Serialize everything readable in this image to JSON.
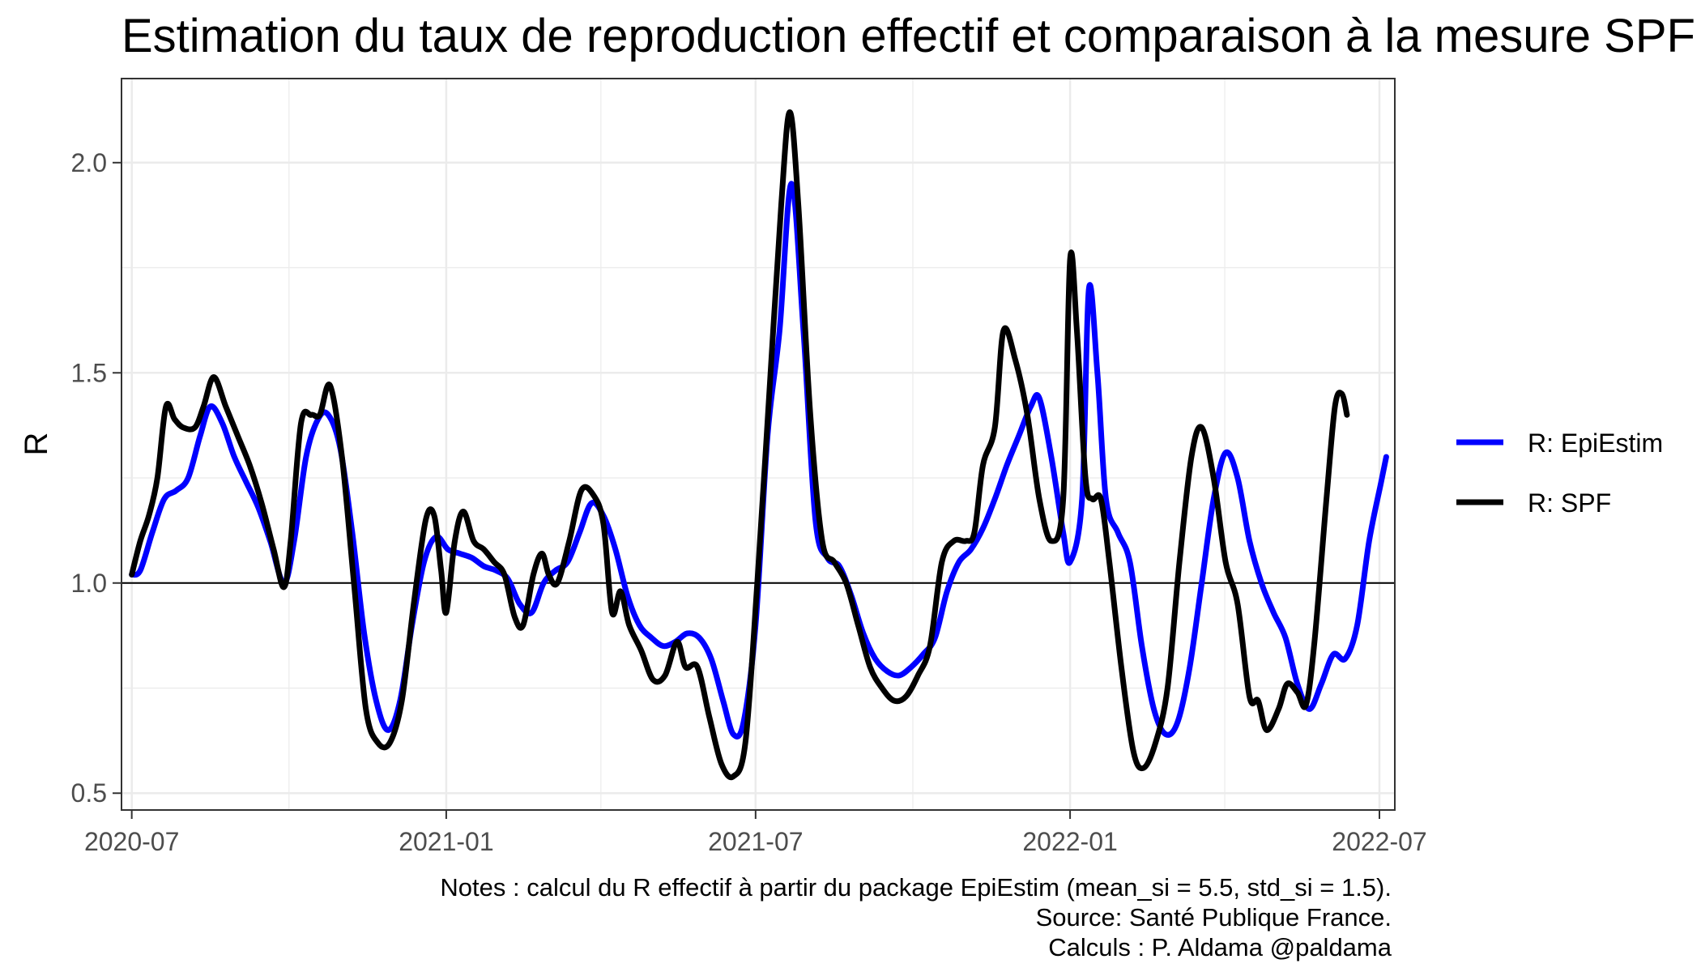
{
  "chart_data": {
    "type": "line",
    "title": "Estimation du taux de reproduction effectif et comparaison à la mesure SPF",
    "xlabel": "",
    "ylabel": "R",
    "xlim": [
      "2020-06-25",
      "2022-07-10"
    ],
    "ylim": [
      0.46,
      2.2
    ],
    "x_ticks": [
      "2020-07",
      "2021-01",
      "2021-07",
      "2022-01",
      "2022-07"
    ],
    "x_tick_dates": [
      "2020-07-01",
      "2021-01-01",
      "2021-07-01",
      "2022-01-01",
      "2022-07-01"
    ],
    "y_ticks": [
      "0.5",
      "1.0",
      "1.5",
      "2.0"
    ],
    "y_tick_values": [
      0.5,
      1.0,
      1.5,
      2.0
    ],
    "reference_line": 1.0,
    "grid": true,
    "legend_position": "right",
    "series": [
      {
        "name": "R: EpiEstim",
        "color": "#0000ff",
        "points": [
          [
            "2020-07-01",
            1.02
          ],
          [
            "2020-07-06",
            1.03
          ],
          [
            "2020-07-13",
            1.12
          ],
          [
            "2020-07-20",
            1.2
          ],
          [
            "2020-07-27",
            1.22
          ],
          [
            "2020-08-03",
            1.25
          ],
          [
            "2020-08-10",
            1.35
          ],
          [
            "2020-08-16",
            1.42
          ],
          [
            "2020-08-23",
            1.38
          ],
          [
            "2020-08-30",
            1.3
          ],
          [
            "2020-09-06",
            1.24
          ],
          [
            "2020-09-13",
            1.18
          ],
          [
            "2020-09-20",
            1.1
          ],
          [
            "2020-09-28",
            1.0
          ],
          [
            "2020-10-04",
            1.1
          ],
          [
            "2020-10-11",
            1.3
          ],
          [
            "2020-10-18",
            1.39
          ],
          [
            "2020-10-24",
            1.4
          ],
          [
            "2020-10-31",
            1.32
          ],
          [
            "2020-11-07",
            1.12
          ],
          [
            "2020-11-14",
            0.88
          ],
          [
            "2020-11-21",
            0.72
          ],
          [
            "2020-11-28",
            0.65
          ],
          [
            "2020-12-05",
            0.72
          ],
          [
            "2020-12-12",
            0.9
          ],
          [
            "2020-12-19",
            1.05
          ],
          [
            "2020-12-26",
            1.11
          ],
          [
            "2021-01-02",
            1.08
          ],
          [
            "2021-01-09",
            1.07
          ],
          [
            "2021-01-16",
            1.06
          ],
          [
            "2021-01-23",
            1.04
          ],
          [
            "2021-01-30",
            1.03
          ],
          [
            "2021-02-06",
            1.01
          ],
          [
            "2021-02-13",
            0.95
          ],
          [
            "2021-02-20",
            0.93
          ],
          [
            "2021-02-27",
            1.0
          ],
          [
            "2021-03-06",
            1.03
          ],
          [
            "2021-03-13",
            1.05
          ],
          [
            "2021-03-20",
            1.12
          ],
          [
            "2021-03-27",
            1.19
          ],
          [
            "2021-04-03",
            1.16
          ],
          [
            "2021-04-10",
            1.08
          ],
          [
            "2021-04-17",
            0.97
          ],
          [
            "2021-04-24",
            0.9
          ],
          [
            "2021-05-01",
            0.87
          ],
          [
            "2021-05-08",
            0.85
          ],
          [
            "2021-05-15",
            0.86
          ],
          [
            "2021-05-22",
            0.88
          ],
          [
            "2021-05-29",
            0.87
          ],
          [
            "2021-06-05",
            0.82
          ],
          [
            "2021-06-12",
            0.72
          ],
          [
            "2021-06-18",
            0.64
          ],
          [
            "2021-06-24",
            0.67
          ],
          [
            "2021-07-01",
            0.9
          ],
          [
            "2021-07-08",
            1.35
          ],
          [
            "2021-07-15",
            1.6
          ],
          [
            "2021-07-22",
            1.95
          ],
          [
            "2021-07-29",
            1.6
          ],
          [
            "2021-08-05",
            1.15
          ],
          [
            "2021-08-12",
            1.06
          ],
          [
            "2021-08-19",
            1.04
          ],
          [
            "2021-08-26",
            0.97
          ],
          [
            "2021-09-02",
            0.88
          ],
          [
            "2021-09-09",
            0.82
          ],
          [
            "2021-09-16",
            0.79
          ],
          [
            "2021-09-23",
            0.78
          ],
          [
            "2021-09-30",
            0.8
          ],
          [
            "2021-10-07",
            0.83
          ],
          [
            "2021-10-14",
            0.87
          ],
          [
            "2021-10-21",
            0.98
          ],
          [
            "2021-10-28",
            1.05
          ],
          [
            "2021-11-04",
            1.08
          ],
          [
            "2021-11-11",
            1.13
          ],
          [
            "2021-11-18",
            1.2
          ],
          [
            "2021-11-25",
            1.28
          ],
          [
            "2021-12-02",
            1.35
          ],
          [
            "2021-12-09",
            1.42
          ],
          [
            "2021-12-14",
            1.44
          ],
          [
            "2021-12-21",
            1.3
          ],
          [
            "2021-12-28",
            1.12
          ],
          [
            "2022-01-01",
            1.05
          ],
          [
            "2022-01-08",
            1.2
          ],
          [
            "2022-01-12",
            1.7
          ],
          [
            "2022-01-17",
            1.5
          ],
          [
            "2022-01-22",
            1.2
          ],
          [
            "2022-01-29",
            1.12
          ],
          [
            "2022-02-05",
            1.05
          ],
          [
            "2022-02-12",
            0.85
          ],
          [
            "2022-02-19",
            0.7
          ],
          [
            "2022-02-26",
            0.64
          ],
          [
            "2022-03-05",
            0.67
          ],
          [
            "2022-03-12",
            0.8
          ],
          [
            "2022-03-19",
            1.0
          ],
          [
            "2022-03-26",
            1.2
          ],
          [
            "2022-04-02",
            1.31
          ],
          [
            "2022-04-09",
            1.25
          ],
          [
            "2022-04-16",
            1.1
          ],
          [
            "2022-04-23",
            1.0
          ],
          [
            "2022-04-30",
            0.93
          ],
          [
            "2022-05-07",
            0.87
          ],
          [
            "2022-05-14",
            0.76
          ],
          [
            "2022-05-21",
            0.7
          ],
          [
            "2022-05-28",
            0.76
          ],
          [
            "2022-06-04",
            0.83
          ],
          [
            "2022-06-11",
            0.82
          ],
          [
            "2022-06-18",
            0.9
          ],
          [
            "2022-06-25",
            1.1
          ],
          [
            "2022-07-02",
            1.24
          ],
          [
            "2022-07-05",
            1.3
          ]
        ]
      },
      {
        "name": "R: SPF",
        "color": "#000000",
        "points": [
          [
            "2020-07-01",
            1.02
          ],
          [
            "2020-07-06",
            1.1
          ],
          [
            "2020-07-11",
            1.16
          ],
          [
            "2020-07-16",
            1.25
          ],
          [
            "2020-07-21",
            1.42
          ],
          [
            "2020-07-26",
            1.39
          ],
          [
            "2020-07-31",
            1.37
          ],
          [
            "2020-08-07",
            1.37
          ],
          [
            "2020-08-12",
            1.42
          ],
          [
            "2020-08-18",
            1.49
          ],
          [
            "2020-08-25",
            1.42
          ],
          [
            "2020-09-01",
            1.35
          ],
          [
            "2020-09-08",
            1.28
          ],
          [
            "2020-09-15",
            1.19
          ],
          [
            "2020-09-22",
            1.08
          ],
          [
            "2020-09-28",
            0.99
          ],
          [
            "2020-10-02",
            1.1
          ],
          [
            "2020-10-08",
            1.38
          ],
          [
            "2020-10-14",
            1.4
          ],
          [
            "2020-10-19",
            1.4
          ],
          [
            "2020-10-25",
            1.47
          ],
          [
            "2020-11-01",
            1.3
          ],
          [
            "2020-11-08",
            1.0
          ],
          [
            "2020-11-15",
            0.7
          ],
          [
            "2020-11-22",
            0.62
          ],
          [
            "2020-11-29",
            0.62
          ],
          [
            "2020-12-06",
            0.72
          ],
          [
            "2020-12-13",
            0.95
          ],
          [
            "2020-12-20",
            1.15
          ],
          [
            "2020-12-25",
            1.16
          ],
          [
            "2020-12-29",
            1.03
          ],
          [
            "2021-01-01",
            0.93
          ],
          [
            "2021-01-06",
            1.1
          ],
          [
            "2021-01-11",
            1.17
          ],
          [
            "2021-01-17",
            1.1
          ],
          [
            "2021-01-23",
            1.08
          ],
          [
            "2021-01-29",
            1.05
          ],
          [
            "2021-02-04",
            1.02
          ],
          [
            "2021-02-10",
            0.92
          ],
          [
            "2021-02-15",
            0.9
          ],
          [
            "2021-02-21",
            1.02
          ],
          [
            "2021-02-26",
            1.07
          ],
          [
            "2021-03-02",
            1.02
          ],
          [
            "2021-03-07",
            1.0
          ],
          [
            "2021-03-14",
            1.1
          ],
          [
            "2021-03-21",
            1.22
          ],
          [
            "2021-03-28",
            1.21
          ],
          [
            "2021-04-03",
            1.14
          ],
          [
            "2021-04-08",
            0.93
          ],
          [
            "2021-04-13",
            0.98
          ],
          [
            "2021-04-18",
            0.9
          ],
          [
            "2021-04-25",
            0.84
          ],
          [
            "2021-05-02",
            0.77
          ],
          [
            "2021-05-09",
            0.78
          ],
          [
            "2021-05-16",
            0.86
          ],
          [
            "2021-05-21",
            0.8
          ],
          [
            "2021-05-28",
            0.8
          ],
          [
            "2021-06-04",
            0.68
          ],
          [
            "2021-06-11",
            0.57
          ],
          [
            "2021-06-18",
            0.54
          ],
          [
            "2021-06-25",
            0.62
          ],
          [
            "2021-07-02",
            1.0
          ],
          [
            "2021-07-09",
            1.45
          ],
          [
            "2021-07-16",
            1.9
          ],
          [
            "2021-07-21",
            2.12
          ],
          [
            "2021-07-26",
            1.9
          ],
          [
            "2021-08-02",
            1.4
          ],
          [
            "2021-08-09",
            1.1
          ],
          [
            "2021-08-16",
            1.05
          ],
          [
            "2021-08-23",
            1.0
          ],
          [
            "2021-08-30",
            0.9
          ],
          [
            "2021-09-06",
            0.8
          ],
          [
            "2021-09-13",
            0.75
          ],
          [
            "2021-09-20",
            0.72
          ],
          [
            "2021-09-27",
            0.73
          ],
          [
            "2021-10-04",
            0.78
          ],
          [
            "2021-10-11",
            0.85
          ],
          [
            "2021-10-18",
            1.05
          ],
          [
            "2021-10-25",
            1.1
          ],
          [
            "2021-11-01",
            1.1
          ],
          [
            "2021-11-06",
            1.12
          ],
          [
            "2021-11-11",
            1.28
          ],
          [
            "2021-11-18",
            1.37
          ],
          [
            "2021-11-23",
            1.6
          ],
          [
            "2021-11-30",
            1.53
          ],
          [
            "2021-12-07",
            1.4
          ],
          [
            "2021-12-14",
            1.2
          ],
          [
            "2021-12-21",
            1.1
          ],
          [
            "2021-12-28",
            1.2
          ],
          [
            "2022-01-01",
            1.77
          ],
          [
            "2022-01-05",
            1.6
          ],
          [
            "2022-01-10",
            1.25
          ],
          [
            "2022-01-14",
            1.2
          ],
          [
            "2022-01-19",
            1.2
          ],
          [
            "2022-01-24",
            1.05
          ],
          [
            "2022-01-31",
            0.8
          ],
          [
            "2022-02-07",
            0.6
          ],
          [
            "2022-02-13",
            0.56
          ],
          [
            "2022-02-20",
            0.62
          ],
          [
            "2022-02-27",
            0.75
          ],
          [
            "2022-03-06",
            1.05
          ],
          [
            "2022-03-13",
            1.3
          ],
          [
            "2022-03-19",
            1.37
          ],
          [
            "2022-03-26",
            1.25
          ],
          [
            "2022-04-02",
            1.05
          ],
          [
            "2022-04-09",
            0.95
          ],
          [
            "2022-04-16",
            0.73
          ],
          [
            "2022-04-21",
            0.72
          ],
          [
            "2022-04-26",
            0.65
          ],
          [
            "2022-05-03",
            0.7
          ],
          [
            "2022-05-08",
            0.76
          ],
          [
            "2022-05-14",
            0.74
          ],
          [
            "2022-05-19",
            0.71
          ],
          [
            "2022-05-24",
            0.86
          ],
          [
            "2022-05-31",
            1.2
          ],
          [
            "2022-06-05",
            1.42
          ],
          [
            "2022-06-09",
            1.45
          ],
          [
            "2022-06-12",
            1.4
          ]
        ]
      }
    ],
    "notes": [
      "Notes : calcul du R effectif à partir du package EpiEstim (mean_si = 5.5, std_si = 1.5).",
      "Source: Santé Publique France.",
      "Calculs : P. Aldama @paldama"
    ]
  }
}
